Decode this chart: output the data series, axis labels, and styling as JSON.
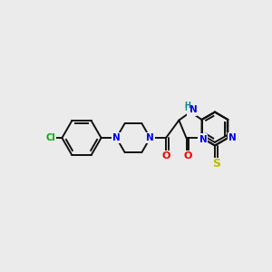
{
  "background_color": "#ebebeb",
  "figsize": [
    3.0,
    3.0
  ],
  "dpi": 100,
  "atom_colors": {
    "N": "#0000ee",
    "O": "#ee0000",
    "S": "#bbbb00",
    "Cl": "#00aa00",
    "C": "#000000",
    "H": "#008888"
  },
  "bond_color": "#111111",
  "bond_width": 1.4
}
